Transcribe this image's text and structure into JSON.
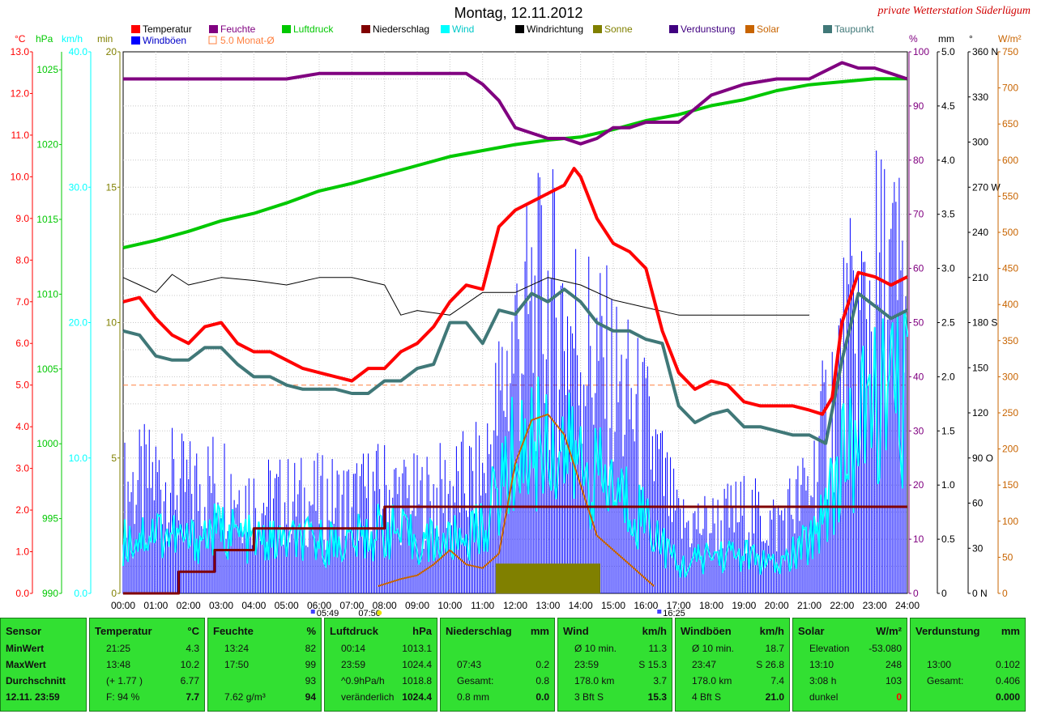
{
  "title": "Montag, 12.11.2012",
  "station": "private Wetterstation Süderlügum",
  "legend": [
    {
      "label": "Temperatur",
      "color": "#ff0000"
    },
    {
      "label": "Feuchte",
      "color": "#800080"
    },
    {
      "label": "Luftdruck",
      "color": "#00c800"
    },
    {
      "label": "Niederschlag",
      "color": "#800000"
    },
    {
      "label": "Wind",
      "color": "#00ffff"
    },
    {
      "label": "Windrichtung",
      "color": "#000000"
    },
    {
      "label": "Sonne",
      "color": "#808000"
    },
    {
      "label": "Verdunstung",
      "color": "#400080"
    },
    {
      "label": "Solar",
      "color": "#c86400"
    },
    {
      "label": "Taupunkt",
      "color": "#407878"
    },
    {
      "label": "Windböen",
      "color": "#0000ff"
    },
    {
      "label": "5.0 Monat-Ø",
      "color": "#ff8040"
    }
  ],
  "axes": {
    "celsius": {
      "label": "°C",
      "color": "#ff0000",
      "ticks": [
        "0.0",
        "1.0",
        "2.0",
        "3.0",
        "4.0",
        "5.0",
        "6.0",
        "7.0",
        "8.0",
        "9.0",
        "10.0",
        "11.0",
        "12.0",
        "13.0"
      ]
    },
    "hpa": {
      "label": "hPa",
      "color": "#00c800",
      "ticks": [
        "990",
        "995",
        "1000",
        "1005",
        "1010",
        "1015",
        "1020",
        "1025"
      ]
    },
    "kmh": {
      "label": "km/h",
      "color": "#00ffff",
      "ticks": [
        "0.0",
        "10.0",
        "20.0",
        "30.0",
        "40.0"
      ]
    },
    "min": {
      "label": "min",
      "color": "#808000",
      "ticks": [
        "0",
        "5",
        "10",
        "15",
        "20"
      ]
    },
    "percent": {
      "label": "%",
      "color": "#800080",
      "ticks": [
        "0",
        "10",
        "20",
        "30",
        "40",
        "50",
        "60",
        "70",
        "80",
        "90",
        "100"
      ]
    },
    "mm": {
      "label": "mm",
      "color": "#000000",
      "ticks": [
        "0",
        "0.5",
        "1.0",
        "1.5",
        "2.0",
        "2.5",
        "3.0",
        "3.5",
        "4.0",
        "4.5",
        "5.0"
      ]
    },
    "degree": {
      "label": "°",
      "color": "#000000",
      "ticks": [
        "0 N",
        "30",
        "60",
        "90 O",
        "120",
        "150",
        "180 S",
        "210",
        "240",
        "270 W",
        "300",
        "330",
        "360 N"
      ]
    },
    "wm2": {
      "label": "W/m²",
      "color": "#c86400",
      "ticks": [
        "0",
        "50",
        "100",
        "150",
        "200",
        "250",
        "300",
        "350",
        "400",
        "450",
        "500",
        "550",
        "600",
        "650",
        "700",
        "750"
      ]
    },
    "time": [
      "00:00",
      "01:00",
      "02:00",
      "03:00",
      "04:00",
      "05:00",
      "06:00",
      "07:00",
      "08:00",
      "09:00",
      "10:00",
      "11:00",
      "12:00",
      "13:00",
      "14:00",
      "15:00",
      "16:00",
      "17:00",
      "18:00",
      "19:00",
      "20:00",
      "21:00",
      "22:00",
      "23:00",
      "24:00"
    ],
    "markers": [
      "05:49",
      "07:50",
      "16:25"
    ]
  },
  "chart_data": {
    "type": "line",
    "title": "Montag, 12.11.2012",
    "x_unit": "hour",
    "series": [
      {
        "name": "Temperatur",
        "unit": "°C",
        "x": [
          0,
          0.5,
          1,
          1.5,
          2,
          2.5,
          3,
          3.5,
          4,
          4.5,
          5,
          5.5,
          6,
          6.5,
          7,
          7.5,
          8,
          8.5,
          9,
          9.5,
          10,
          10.5,
          11,
          11.5,
          12,
          12.5,
          13,
          13.5,
          13.8,
          14,
          14.5,
          15,
          15.5,
          16,
          16.5,
          17,
          17.5,
          18,
          18.5,
          19,
          19.5,
          20,
          20.5,
          21,
          21.4,
          21.7,
          22,
          22.5,
          23,
          23.5,
          24
        ],
        "y": [
          7.0,
          7.1,
          6.6,
          6.2,
          6.0,
          6.4,
          6.5,
          6.0,
          5.8,
          5.8,
          5.6,
          5.4,
          5.3,
          5.2,
          5.1,
          5.4,
          5.4,
          5.8,
          6.0,
          6.4,
          7.0,
          7.4,
          7.3,
          8.8,
          9.2,
          9.4,
          9.6,
          9.8,
          10.2,
          10.0,
          9.0,
          8.4,
          8.2,
          7.8,
          6.3,
          5.3,
          4.9,
          5.1,
          5.0,
          4.6,
          4.5,
          4.5,
          4.5,
          4.4,
          4.3,
          4.7,
          6.5,
          7.7,
          7.6,
          7.4,
          7.6
        ]
      },
      {
        "name": "Feuchte",
        "unit": "%",
        "x": [
          0,
          1,
          2,
          3,
          4,
          5,
          6,
          7,
          8,
          9,
          10,
          10.5,
          11,
          11.5,
          12,
          12.5,
          13,
          13.5,
          14,
          14.5,
          15,
          15.5,
          16,
          17,
          18,
          19,
          20,
          21,
          22,
          22.5,
          23,
          23.5,
          24
        ],
        "y": [
          95,
          95,
          95,
          95,
          95,
          95,
          96,
          96,
          96,
          96,
          96,
          96,
          94,
          91,
          86,
          85,
          84,
          84,
          83,
          84,
          86,
          86,
          87,
          87,
          92,
          94,
          95,
          95,
          98,
          97,
          97,
          96,
          95
        ]
      },
      {
        "name": "Luftdruck",
        "unit": "hPa",
        "x": [
          0,
          1,
          2,
          3,
          4,
          5,
          6,
          7,
          8,
          9,
          10,
          11,
          12,
          13,
          14,
          15,
          16,
          17,
          18,
          19,
          20,
          21,
          22,
          23,
          24
        ],
        "y": [
          1013.1,
          1013.6,
          1014.2,
          1014.9,
          1015.4,
          1016.1,
          1016.9,
          1017.4,
          1018.0,
          1018.6,
          1019.2,
          1019.6,
          1020.0,
          1020.3,
          1020.5,
          1021.0,
          1021.6,
          1022.0,
          1022.6,
          1023.0,
          1023.6,
          1024.0,
          1024.2,
          1024.4,
          1024.4
        ]
      },
      {
        "name": "Taupunkt",
        "unit": "°C",
        "x": [
          0,
          0.5,
          1,
          1.5,
          2,
          2.5,
          3,
          3.5,
          4,
          4.5,
          5,
          5.5,
          6,
          6.5,
          7,
          7.5,
          8,
          8.5,
          9,
          9.5,
          10,
          10.5,
          11,
          11.5,
          12,
          12.5,
          13,
          13.5,
          14,
          14.5,
          15,
          15.5,
          16,
          16.5,
          17,
          17.5,
          18,
          18.5,
          19,
          19.5,
          20,
          20.5,
          21,
          21.5,
          22,
          22.5,
          23,
          23.5,
          24
        ],
        "y": [
          6.3,
          6.2,
          5.7,
          5.6,
          5.6,
          5.9,
          5.9,
          5.5,
          5.2,
          5.2,
          5.0,
          4.9,
          4.9,
          4.9,
          4.8,
          4.8,
          5.1,
          5.1,
          5.4,
          5.5,
          6.5,
          6.5,
          6.0,
          6.8,
          6.7,
          7.2,
          7.0,
          7.3,
          7.0,
          6.5,
          6.3,
          6.3,
          6.1,
          6.0,
          4.5,
          4.1,
          4.3,
          4.4,
          4.0,
          4.0,
          3.9,
          3.8,
          3.8,
          3.6,
          5.6,
          7.2,
          6.9,
          6.6,
          6.8
        ]
      },
      {
        "name": "Niederschlag",
        "unit": "mm",
        "x": [
          0,
          1.7,
          2.8,
          4,
          8,
          9,
          24
        ],
        "y": [
          0,
          0.2,
          0.4,
          0.6,
          0.8,
          0.8,
          0.8
        ]
      },
      {
        "name": "Windrichtung",
        "unit": "°",
        "x": [
          0,
          0.5,
          1,
          1.5,
          2,
          3,
          4,
          5,
          6,
          7,
          8,
          8.5,
          9,
          10,
          11,
          12,
          13,
          14,
          15,
          16,
          17,
          18,
          19,
          20,
          21
        ],
        "y": [
          210,
          205,
          200,
          212,
          205,
          210,
          208,
          205,
          210,
          210,
          205,
          185,
          188,
          185,
          200,
          200,
          210,
          205,
          195,
          190,
          185,
          185,
          185,
          185,
          185
        ]
      },
      {
        "name": "Solar",
        "unit": "W/m²",
        "x": [
          7.8,
          8.5,
          9,
          9.5,
          10,
          10.5,
          11,
          11.5,
          12,
          12.5,
          13,
          13.5,
          14,
          14.5,
          15,
          15.5,
          16,
          16.25
        ],
        "y": [
          10,
          20,
          25,
          40,
          60,
          40,
          35,
          55,
          180,
          240,
          248,
          220,
          150,
          80,
          60,
          40,
          20,
          10
        ]
      },
      {
        "name": "Sonne",
        "unit": "min",
        "x": [
          11.4,
          14.6
        ],
        "y": [
          1.1,
          1.1
        ]
      },
      {
        "name": "Wind",
        "unit": "km/h",
        "x": [
          0,
          1,
          2,
          3,
          4,
          5,
          6,
          7,
          8,
          9,
          10,
          11,
          12,
          13,
          14,
          15,
          16,
          17,
          18,
          19,
          20,
          21,
          22,
          23,
          24
        ],
        "y": [
          4,
          5,
          4,
          5,
          4,
          4,
          4,
          4,
          5,
          4,
          4,
          5,
          11,
          12,
          10,
          8,
          6,
          2,
          3,
          3,
          2,
          4,
          10,
          15,
          15
        ]
      },
      {
        "name": "Windböen",
        "unit": "km/h",
        "x": [
          0,
          1,
          2,
          3,
          4,
          5,
          6,
          7,
          8,
          9,
          10,
          11,
          12,
          13,
          14,
          15,
          16,
          17,
          18,
          19,
          20,
          21,
          22,
          23,
          24
        ],
        "y": [
          9,
          10,
          9,
          10,
          8,
          8,
          8,
          8,
          9,
          8,
          9,
          10,
          22,
          25,
          22,
          18,
          14,
          6,
          6,
          7,
          6,
          9,
          20,
          26,
          26
        ]
      }
    ],
    "reference": {
      "name": "5.0 Monat-Ø",
      "unit": "°C",
      "y": 5.0
    }
  },
  "panels": [
    {
      "head": "Sensor",
      "unit": "",
      "rows": [
        {
          "l": "MinWert",
          "m": "",
          "v": "",
          "b": true
        },
        {
          "l": "MaxWert",
          "m": "",
          "v": "",
          "b": true
        },
        {
          "l": "Durchschnitt",
          "m": "",
          "v": "",
          "b": true
        },
        {
          "l": "12.11. 23:59",
          "m": "",
          "v": "",
          "b": true
        }
      ]
    },
    {
      "head": "Temperatur",
      "unit": "°C",
      "rows": [
        {
          "l": "",
          "m": "21:25",
          "v": "4.3"
        },
        {
          "l": "",
          "m": "13:48",
          "v": "10.2"
        },
        {
          "l": "",
          "m": "(+ 1.77 )",
          "v": "6.77"
        },
        {
          "l": "",
          "m": "F: 94 %",
          "v": "7.7",
          "vb": true
        }
      ]
    },
    {
      "head": "Feuchte",
      "unit": "%",
      "rows": [
        {
          "l": "",
          "m": "13:24",
          "v": "82"
        },
        {
          "l": "",
          "m": "17:50",
          "v": "99"
        },
        {
          "l": "",
          "m": "",
          "v": "93"
        },
        {
          "l": "",
          "m": "7.62 g/m³",
          "v": "94",
          "vb": true
        }
      ]
    },
    {
      "head": "Luftdruck",
      "unit": "hPa",
      "rows": [
        {
          "l": "",
          "m": "00:14",
          "v": "1013.1"
        },
        {
          "l": "",
          "m": "23:59",
          "v": "1024.4"
        },
        {
          "l": "",
          "m": "^0.9hPa/h",
          "v": "1018.8"
        },
        {
          "l": "",
          "m": "veränderlich",
          "v": "1024.4",
          "vb": true
        }
      ]
    },
    {
      "head": "Niederschlag",
      "unit": "mm",
      "rows": [
        {
          "l": "",
          "m": "",
          "v": ""
        },
        {
          "l": "",
          "m": "07:43",
          "v": "0.2"
        },
        {
          "l": "",
          "m": "Gesamt:",
          "v": "0.8"
        },
        {
          "l": "",
          "m": "0.8 mm",
          "v": "0.0",
          "vb": true
        }
      ]
    },
    {
      "head": "Wind",
      "unit": "km/h",
      "rows": [
        {
          "l": "",
          "m": "Ø 10 min.",
          "v": "11.3"
        },
        {
          "l": "",
          "m": "23:59",
          "v": "S 15.3"
        },
        {
          "l": "",
          "m": "178.0 km",
          "v": "3.7"
        },
        {
          "l": "",
          "m": "3 Bft S",
          "v": "15.3",
          "vb": true
        }
      ]
    },
    {
      "head": "Windböen",
      "unit": "km/h",
      "rows": [
        {
          "l": "",
          "m": "Ø 10 min.",
          "v": "18.7"
        },
        {
          "l": "",
          "m": "23:47",
          "v": "S 26.8"
        },
        {
          "l": "",
          "m": "178.0 km",
          "v": "7.4"
        },
        {
          "l": "",
          "m": "4 Bft S",
          "v": "21.0",
          "vb": true
        }
      ]
    },
    {
      "head": "Solar",
      "unit": "W/m²",
      "rows": [
        {
          "l": "",
          "m": "Elevation",
          "v": "-53.080"
        },
        {
          "l": "",
          "m": "13:10",
          "v": "248"
        },
        {
          "l": "",
          "m": "3:08 h",
          "v": "103"
        },
        {
          "l": "",
          "m": "dunkel",
          "v": "0",
          "vb": true,
          "red": true
        }
      ]
    },
    {
      "head": "Verdunstung",
      "unit": "mm",
      "rows": [
        {
          "l": "",
          "m": "",
          "v": ""
        },
        {
          "l": "",
          "m": "13:00",
          "v": "0.102"
        },
        {
          "l": "",
          "m": "Gesamt:",
          "v": "0.406"
        },
        {
          "l": "",
          "m": "",
          "v": "0.000",
          "vb": true
        }
      ]
    }
  ]
}
